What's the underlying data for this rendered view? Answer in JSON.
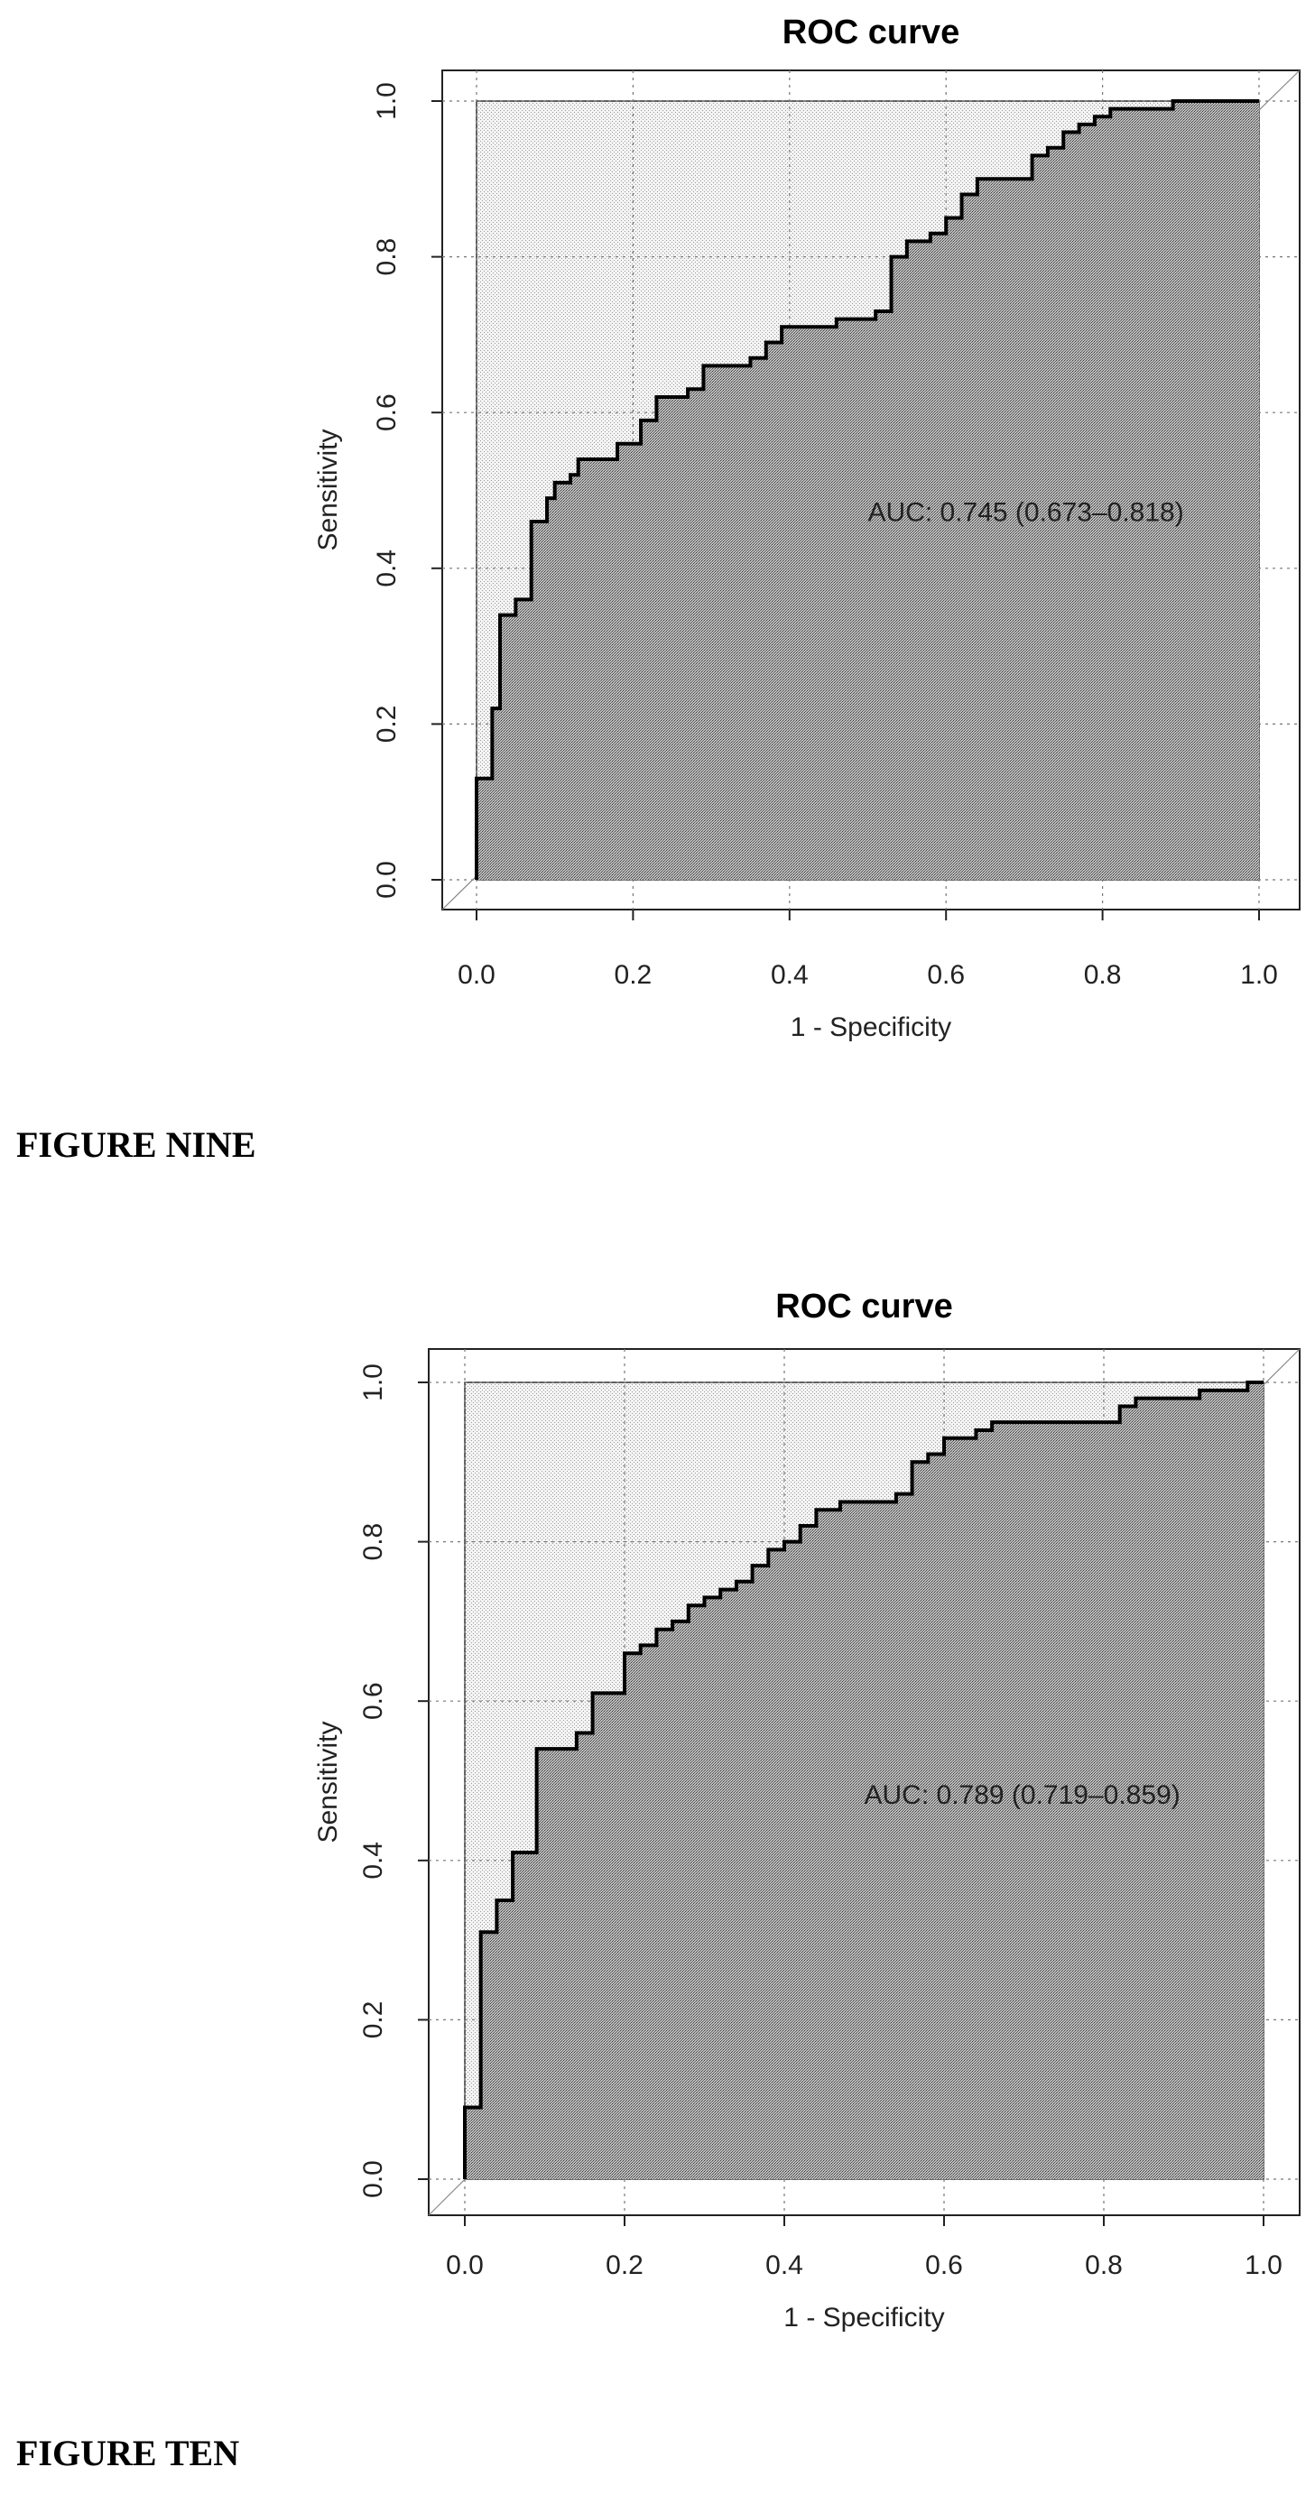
{
  "chart_data": [
    {
      "type": "line",
      "title": "ROC curve",
      "xlabel": "1 - Specificity",
      "ylabel": "Sensitivity",
      "xlim": [
        0,
        1
      ],
      "ylim": [
        0,
        1
      ],
      "xticks": [
        "0.0",
        "0.2",
        "0.4",
        "0.6",
        "0.8",
        "1.0"
      ],
      "yticks": [
        "0.0",
        "0.2",
        "0.4",
        "0.6",
        "0.8",
        "1.0"
      ],
      "grid": true,
      "annotation": "AUC: 0.745 (0.673–0.818)",
      "annotation_pos": [
        0.5,
        0.47
      ],
      "series": [
        {
          "x": [
            0.0,
            0.0,
            0.02,
            0.02,
            0.03,
            0.03,
            0.05,
            0.05,
            0.07,
            0.07,
            0.09,
            0.09,
            0.1,
            0.1,
            0.12,
            0.12,
            0.13,
            0.13,
            0.18,
            0.18,
            0.21,
            0.21,
            0.23,
            0.23,
            0.27,
            0.27,
            0.29,
            0.29,
            0.35,
            0.35,
            0.37,
            0.37,
            0.39,
            0.39,
            0.46,
            0.46,
            0.51,
            0.51,
            0.53,
            0.53,
            0.55,
            0.55,
            0.58,
            0.58,
            0.6,
            0.6,
            0.62,
            0.62,
            0.64,
            0.64,
            0.71,
            0.71,
            0.73,
            0.73,
            0.75,
            0.75,
            0.77,
            0.77,
            0.79,
            0.79,
            0.81,
            0.81,
            0.83,
            0.83,
            0.89,
            0.89,
            0.91,
            0.91,
            0.94,
            0.94,
            1.0,
            1.0
          ],
          "y": [
            0.0,
            0.13,
            0.13,
            0.22,
            0.22,
            0.34,
            0.34,
            0.36,
            0.36,
            0.46,
            0.46,
            0.49,
            0.49,
            0.51,
            0.51,
            0.52,
            0.52,
            0.54,
            0.54,
            0.56,
            0.56,
            0.59,
            0.59,
            0.62,
            0.62,
            0.63,
            0.63,
            0.66,
            0.66,
            0.67,
            0.67,
            0.69,
            0.69,
            0.71,
            0.71,
            0.72,
            0.72,
            0.73,
            0.73,
            0.8,
            0.8,
            0.82,
            0.82,
            0.83,
            0.83,
            0.85,
            0.85,
            0.88,
            0.88,
            0.9,
            0.9,
            0.93,
            0.93,
            0.94,
            0.94,
            0.96,
            0.96,
            0.97,
            0.97,
            0.98,
            0.98,
            0.99,
            0.99,
            0.99,
            0.99,
            1.0,
            1.0,
            1.0,
            1.0,
            1.0,
            1.0,
            1.0
          ]
        }
      ]
    },
    {
      "type": "line",
      "title": "ROC curve",
      "xlabel": "1 - Specificity",
      "ylabel": "Sensitivity",
      "xlim": [
        0,
        1
      ],
      "ylim": [
        0,
        1
      ],
      "xticks": [
        "0.0",
        "0.2",
        "0.4",
        "0.6",
        "0.8",
        "1.0"
      ],
      "yticks": [
        "0.0",
        "0.2",
        "0.4",
        "0.6",
        "0.8",
        "1.0"
      ],
      "grid": true,
      "annotation": "AUC: 0.789 (0.719–0.859)",
      "annotation_pos": [
        0.5,
        0.48
      ],
      "series": [
        {
          "x": [
            0.0,
            0.0,
            0.02,
            0.02,
            0.04,
            0.04,
            0.06,
            0.06,
            0.09,
            0.09,
            0.14,
            0.14,
            0.16,
            0.16,
            0.2,
            0.2,
            0.22,
            0.22,
            0.24,
            0.24,
            0.26,
            0.26,
            0.28,
            0.28,
            0.3,
            0.3,
            0.32,
            0.32,
            0.34,
            0.34,
            0.36,
            0.36,
            0.38,
            0.38,
            0.4,
            0.4,
            0.42,
            0.42,
            0.44,
            0.44,
            0.47,
            0.47,
            0.54,
            0.54,
            0.56,
            0.56,
            0.58,
            0.58,
            0.6,
            0.6,
            0.64,
            0.64,
            0.66,
            0.66,
            0.82,
            0.82,
            0.84,
            0.84,
            0.9,
            0.9,
            0.92,
            0.92,
            0.98,
            0.98,
            1.0
          ],
          "y": [
            0.0,
            0.09,
            0.09,
            0.31,
            0.31,
            0.35,
            0.35,
            0.41,
            0.41,
            0.54,
            0.54,
            0.56,
            0.56,
            0.61,
            0.61,
            0.66,
            0.66,
            0.67,
            0.67,
            0.69,
            0.69,
            0.7,
            0.7,
            0.72,
            0.72,
            0.73,
            0.73,
            0.74,
            0.74,
            0.75,
            0.75,
            0.77,
            0.77,
            0.79,
            0.79,
            0.8,
            0.8,
            0.82,
            0.82,
            0.84,
            0.84,
            0.85,
            0.85,
            0.86,
            0.86,
            0.9,
            0.9,
            0.91,
            0.91,
            0.93,
            0.93,
            0.94,
            0.94,
            0.95,
            0.95,
            0.97,
            0.97,
            0.98,
            0.98,
            0.98,
            0.98,
            0.99,
            0.99,
            1.0,
            1.0
          ]
        }
      ]
    }
  ],
  "figure_labels": [
    "FIGURE NINE",
    "FIGURE TEN"
  ]
}
